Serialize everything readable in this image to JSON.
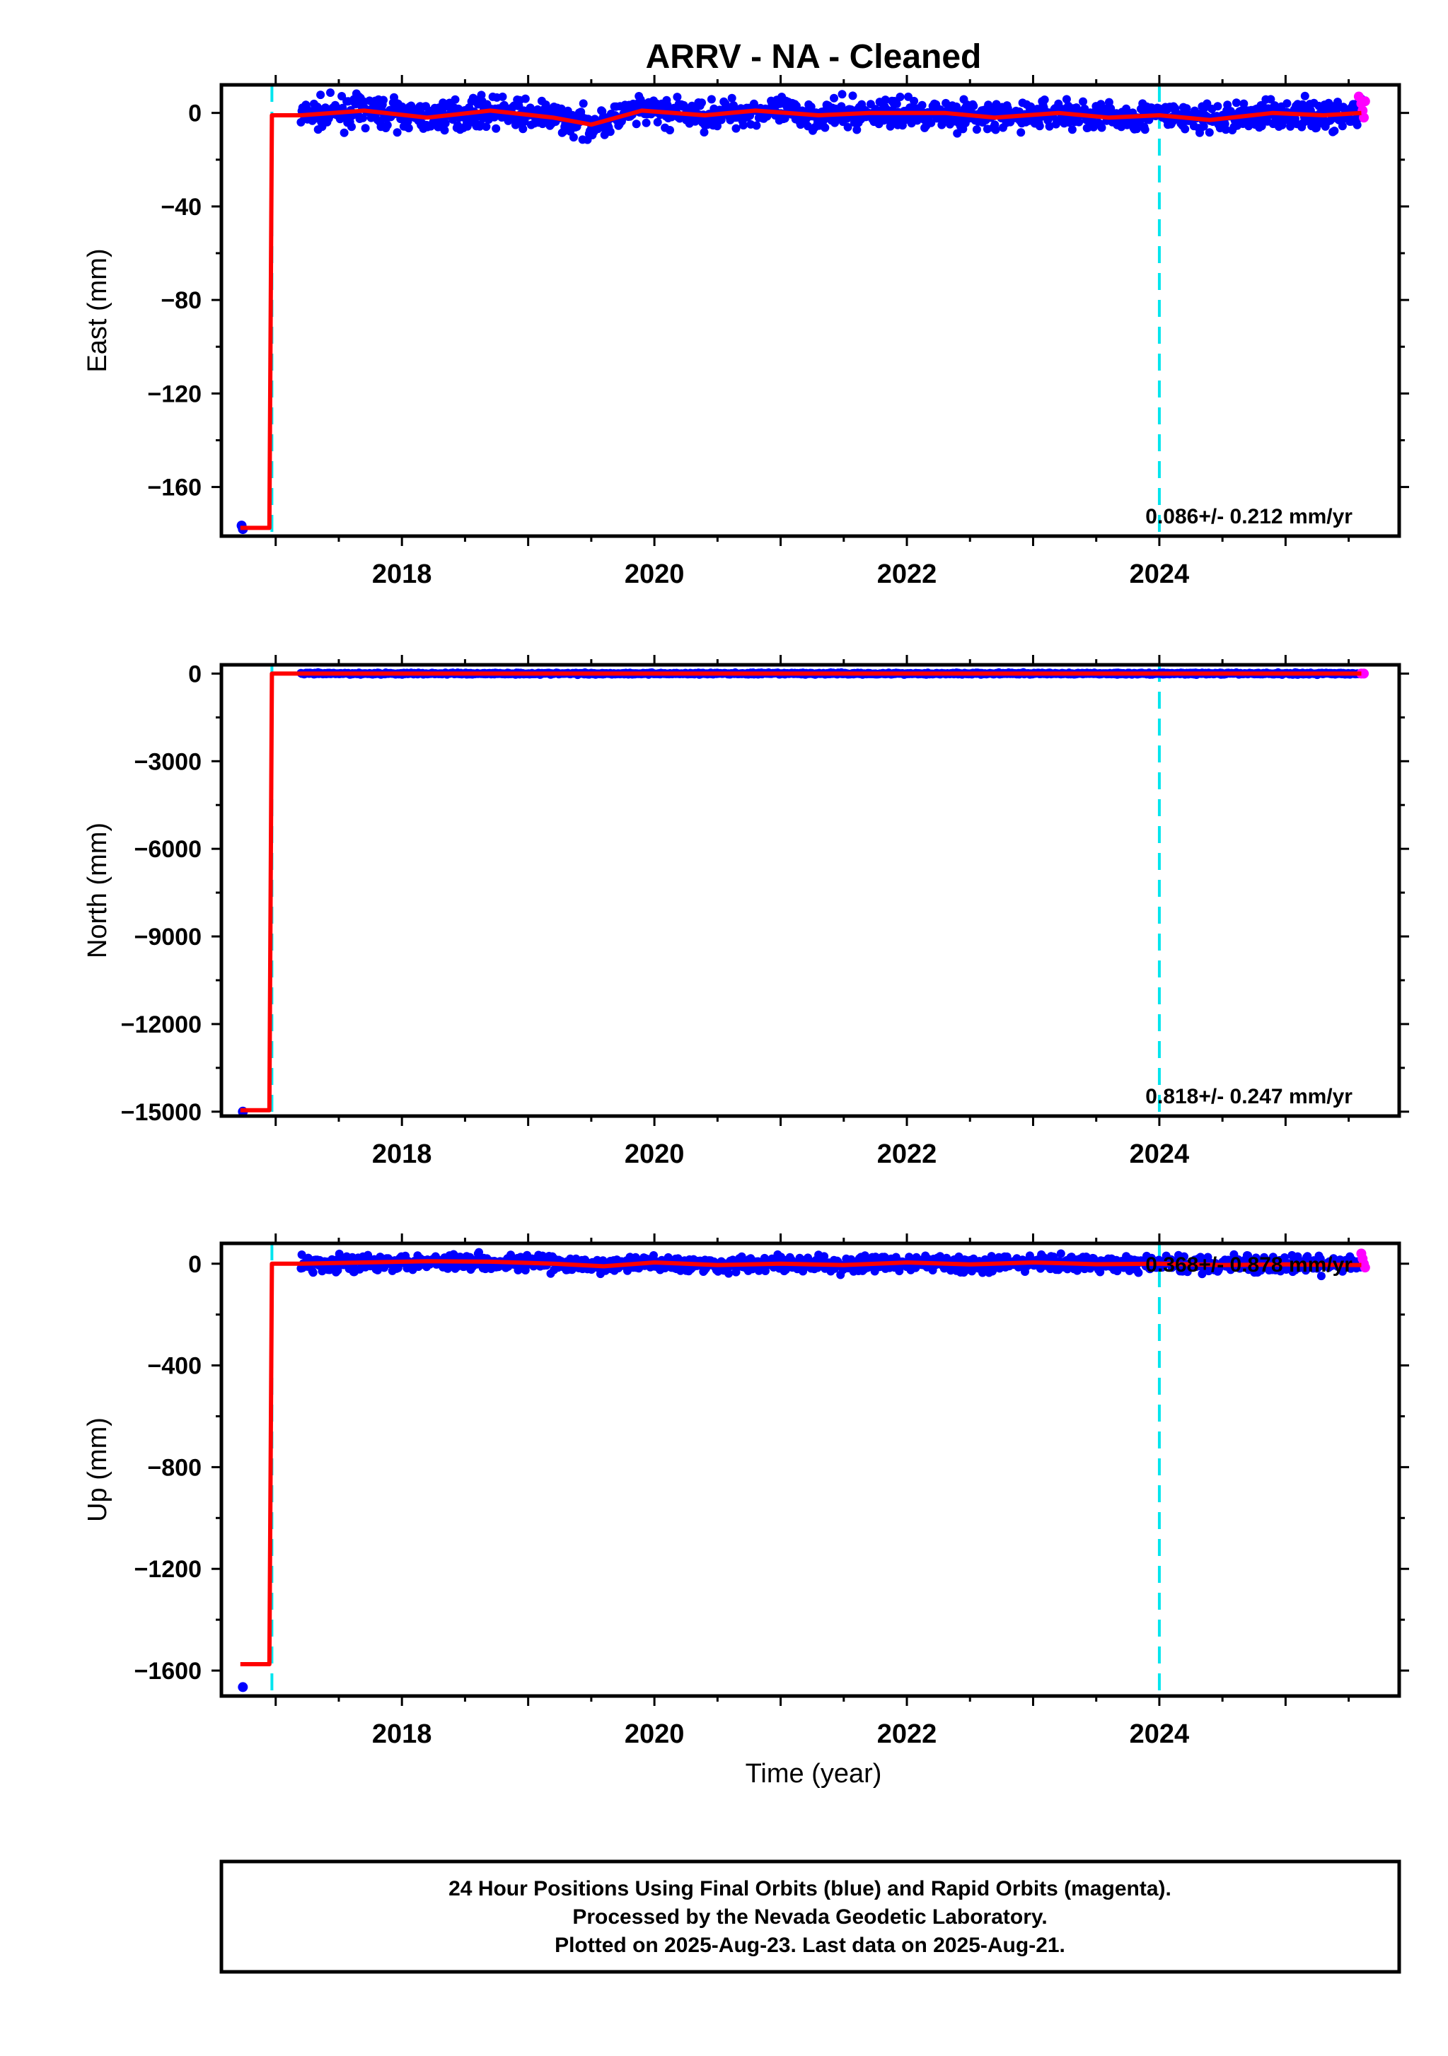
{
  "title": "ARRV  - NA - Cleaned",
  "colors": {
    "final_orbits": "#0000ff",
    "rapid_orbits": "#ff00ff",
    "model_fit": "#ff0000",
    "event_lines": "#00e5ee",
    "frame": "#000000"
  },
  "x_axis": {
    "label": "Time (year)",
    "ticks": [
      "2018",
      "2020",
      "2022",
      "2024"
    ],
    "range": [
      2016.57,
      2025.9
    ]
  },
  "event_lines": [
    2016.97,
    2024.0
  ],
  "footer": {
    "lines": [
      "24 Hour Positions Using Final Orbits (blue) and Rapid Orbits (magenta).",
      "Processed by the Nevada Geodetic Laboratory.",
      "Plotted on 2025-Aug-23. Last data on 2025-Aug-21."
    ]
  },
  "chart_data": [
    {
      "type": "scatter",
      "component": "east",
      "ylabel": "East (mm)",
      "ylim": [
        -181,
        12
      ],
      "y_ticks": [
        "0",
        "−40",
        "−80",
        "−120",
        "−160"
      ],
      "rate_text": "0.086+/- 0.212 mm/yr",
      "rate_mm_per_yr": 0.086,
      "rate_sigma_mm_per_yr": 0.212,
      "early_points": [
        [
          2016.73,
          -176.5
        ],
        [
          2016.74,
          -178.0
        ]
      ],
      "model_step": {
        "pre": -177.5,
        "post": -1.0,
        "epoch": 2016.97
      },
      "series_center": [
        [
          2017.2,
          -1
        ],
        [
          2017.7,
          1
        ],
        [
          2018.2,
          -2
        ],
        [
          2018.7,
          1
        ],
        [
          2019.2,
          -2
        ],
        [
          2019.5,
          -5
        ],
        [
          2019.9,
          1
        ],
        [
          2020.4,
          -1
        ],
        [
          2020.8,
          1
        ],
        [
          2021.3,
          -1
        ],
        [
          2021.7,
          0
        ],
        [
          2022.3,
          0
        ],
        [
          2022.7,
          -2
        ],
        [
          2023.2,
          0
        ],
        [
          2023.6,
          -2
        ],
        [
          2024.0,
          -1
        ],
        [
          2024.4,
          -3
        ],
        [
          2024.9,
          0
        ],
        [
          2025.3,
          -1
        ],
        [
          2025.6,
          0
        ]
      ],
      "scatter_amplitude_mm": 3,
      "rapid_points": [
        [
          2025.58,
          7
        ],
        [
          2025.6,
          4
        ],
        [
          2025.61,
          1
        ],
        [
          2025.62,
          -2
        ],
        [
          2025.63,
          5
        ]
      ]
    },
    {
      "type": "scatter",
      "component": "north",
      "ylabel": "North (mm)",
      "ylim": [
        -15150,
        300
      ],
      "y_ticks": [
        "0",
        "−3000",
        "−6000",
        "−9000",
        "−12000",
        "−15000"
      ],
      "rate_text": "0.818+/- 0.247 mm/yr",
      "rate_mm_per_yr": 0.818,
      "rate_sigma_mm_per_yr": 0.247,
      "early_points": [
        [
          2016.74,
          -15000
        ]
      ],
      "model_step": {
        "pre": -14950,
        "post": 0,
        "epoch": 2016.97
      },
      "series_center": [
        [
          2017.2,
          0
        ],
        [
          2025.6,
          0
        ]
      ],
      "scatter_amplitude_mm": 15,
      "rapid_points": [
        [
          2025.6,
          0
        ],
        [
          2025.62,
          0
        ]
      ]
    },
    {
      "type": "scatter",
      "component": "up",
      "ylabel": "Up (mm)",
      "ylim": [
        -1700,
        80
      ],
      "y_ticks": [
        "0",
        "−400",
        "−800",
        "−1200",
        "−1600"
      ],
      "rate_text": "0.368+/- 0.878 mm/yr",
      "rate_mm_per_yr": 0.368,
      "rate_sigma_mm_per_yr": 0.878,
      "early_points": [
        [
          2016.74,
          -1665
        ]
      ],
      "model_step": {
        "pre": -1575,
        "post": 0,
        "epoch": 2016.97
      },
      "series_center": [
        [
          2017.2,
          0
        ],
        [
          2017.7,
          5
        ],
        [
          2018.2,
          10
        ],
        [
          2018.7,
          8
        ],
        [
          2019.2,
          0
        ],
        [
          2019.6,
          -10
        ],
        [
          2020.0,
          5
        ],
        [
          2020.5,
          -5
        ],
        [
          2021.0,
          0
        ],
        [
          2021.5,
          -5
        ],
        [
          2022.0,
          5
        ],
        [
          2022.5,
          -3
        ],
        [
          2023.0,
          5
        ],
        [
          2023.5,
          -2
        ],
        [
          2024.0,
          0
        ],
        [
          2024.5,
          -5
        ],
        [
          2025.0,
          -3
        ],
        [
          2025.6,
          -5
        ]
      ],
      "scatter_amplitude_mm": 15,
      "outlier_points": [
        [
          2017.62,
          -30
        ]
      ],
      "rapid_points": [
        [
          2025.6,
          40
        ],
        [
          2025.61,
          20
        ],
        [
          2025.62,
          0
        ],
        [
          2025.63,
          -15
        ]
      ]
    }
  ]
}
